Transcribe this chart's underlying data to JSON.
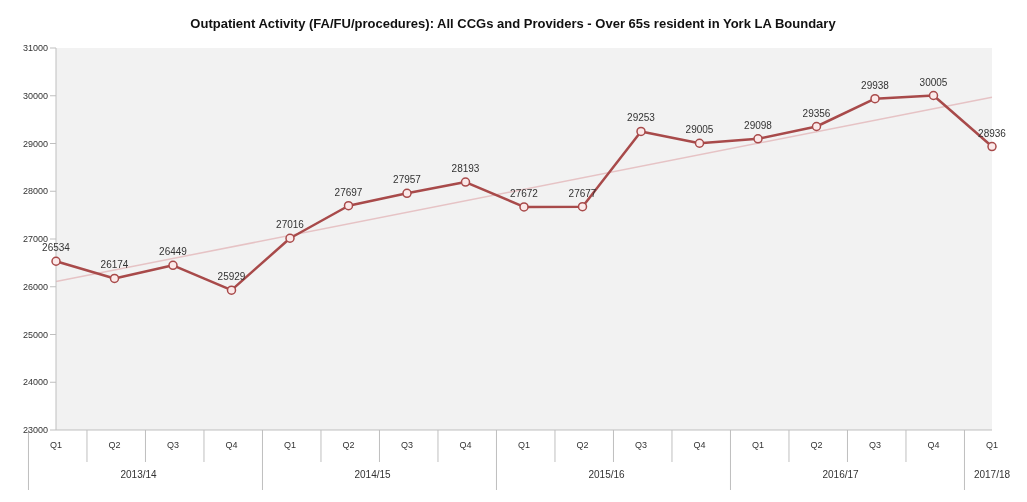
{
  "chart_data": {
    "type": "line",
    "title": "Outpatient Activity (FA/FU/procedures): All CCGs and Providers - Over 65s resident in York LA Boundary",
    "categories": [
      "Q1",
      "Q2",
      "Q3",
      "Q4",
      "Q1",
      "Q2",
      "Q3",
      "Q4",
      "Q1",
      "Q2",
      "Q3",
      "Q4",
      "Q1",
      "Q2",
      "Q3",
      "Q4",
      "Q1"
    ],
    "annotations": [
      "2013/14",
      "2014/15",
      "2015/16",
      "2016/17",
      "2017/18"
    ],
    "series": [
      {
        "color": "#a84a4a",
        "marker": "circle",
        "values": [
          26534,
          26174,
          26449,
          25929,
          27016,
          27697,
          27957,
          28193,
          27672,
          27677,
          29253,
          29005,
          29098,
          29356,
          29938,
          30005,
          28936
        ],
        "value_labels": [
          "26534",
          "26174",
          "26449",
          "25929",
          "27016",
          "27697",
          "27957",
          "28193",
          "27672",
          "27677",
          "29253",
          "29005",
          "29098",
          "29356",
          "29938",
          "30005",
          "28936"
        ]
      },
      {
        "type": "line",
        "color": "#e6c3c5",
        "marker": "none",
        "values": [
          26110,
          null,
          null,
          null,
          null,
          null,
          null,
          null,
          null,
          null,
          null,
          null,
          null,
          null,
          null,
          null,
          29970
        ]
      }
    ],
    "line_style": "solid",
    "ylim": [
      23000,
      31000
    ],
    "yticks": [
      23000,
      24000,
      25000,
      26000,
      27000,
      28000,
      29000,
      30000,
      31000
    ]
  }
}
